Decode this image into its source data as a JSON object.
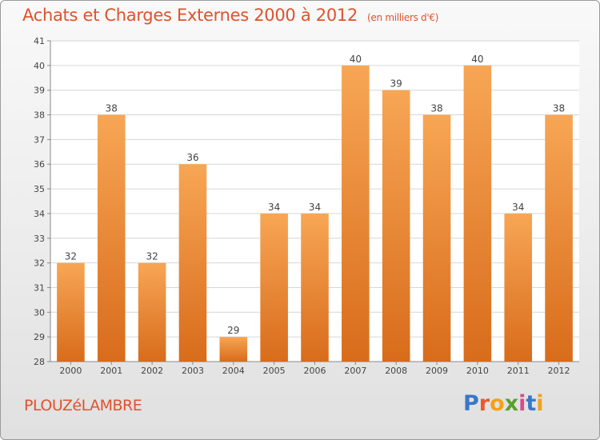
{
  "header": {
    "title": "Achats et Charges Externes 2000 à 2012",
    "unit": "(en milliers d'€)"
  },
  "footer": {
    "commune": "PLOUZéLAMBRE",
    "logo_text": "Proxiti"
  },
  "colors": {
    "bar_light": "#f7a655",
    "bar_dark": "#d86c1b",
    "title": "#e0522d"
  },
  "chart_data": {
    "type": "bar",
    "title": "Achats et Charges Externes 2000 à 2012",
    "subtitle": "(en milliers d'€)",
    "categories": [
      "2000",
      "2001",
      "2002",
      "2003",
      "2004",
      "2005",
      "2006",
      "2007",
      "2008",
      "2009",
      "2010",
      "2011",
      "2012"
    ],
    "values": [
      32,
      38,
      32,
      36,
      29,
      34,
      34,
      40,
      39,
      38,
      40,
      34,
      38
    ],
    "yticks": [
      28,
      29,
      30,
      31,
      32,
      33,
      34,
      35,
      36,
      37,
      38,
      39,
      40,
      41
    ],
    "ylim": [
      28,
      41
    ],
    "grid": true,
    "xlabel": "",
    "ylabel": ""
  }
}
